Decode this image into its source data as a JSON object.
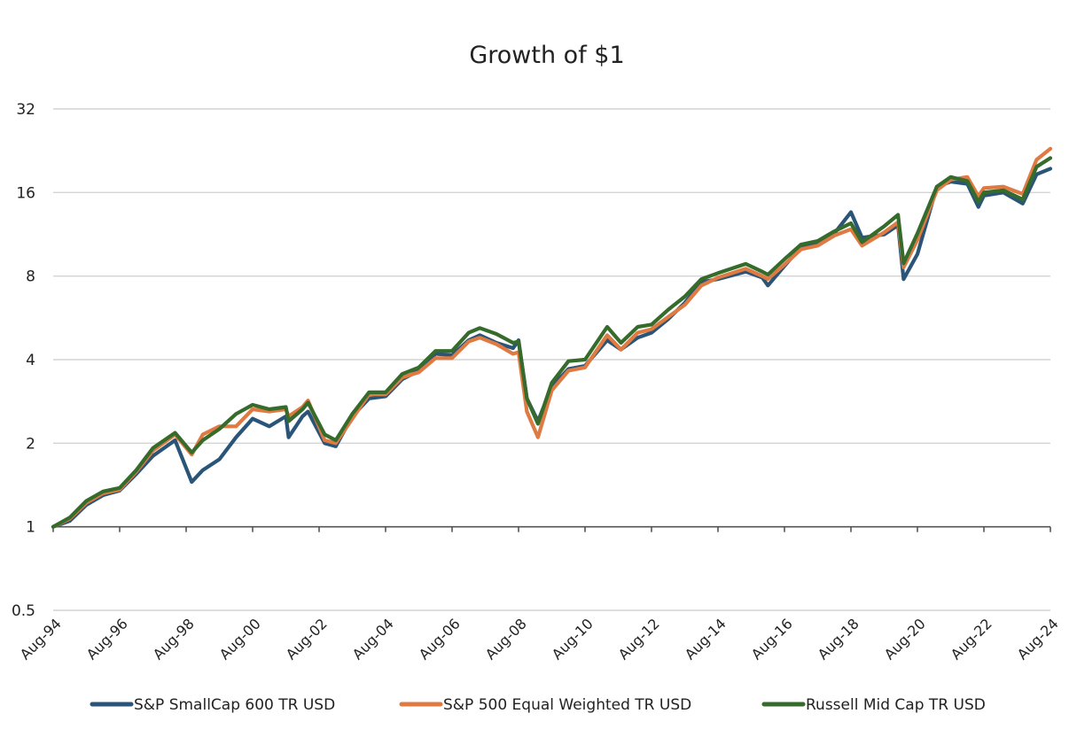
{
  "chart_data": {
    "type": "line",
    "title": "Growth of $1",
    "xlabel": "",
    "ylabel": "",
    "yscale": "log2",
    "ylim": [
      0.5,
      32
    ],
    "yticks": [
      {
        "value": 0.5,
        "label": "0.5"
      },
      {
        "value": 1,
        "label": "1"
      },
      {
        "value": 2,
        "label": "2"
      },
      {
        "value": 4,
        "label": "4"
      },
      {
        "value": 8,
        "label": "8"
      },
      {
        "value": 16,
        "label": "16"
      },
      {
        "value": 32,
        "label": "32"
      }
    ],
    "grid": true,
    "legend_position": "bottom",
    "xlim": [
      "1994-08",
      "2024-08"
    ],
    "xtick_labels": [
      "Aug-94",
      "Aug-96",
      "Aug-98",
      "Aug-00",
      "Aug-02",
      "Aug-04",
      "Aug-06",
      "Aug-08",
      "Aug-10",
      "Aug-12",
      "Aug-14",
      "Aug-16",
      "Aug-18",
      "Aug-20",
      "Aug-22",
      "Aug-24"
    ],
    "series": [
      {
        "name": "S&P SmallCap 600 TR USD",
        "color": "#2a5578",
        "points": [
          [
            "1994-08",
            1.0
          ],
          [
            "1995-02",
            1.05
          ],
          [
            "1995-08",
            1.2
          ],
          [
            "1996-02",
            1.3
          ],
          [
            "1996-08",
            1.35
          ],
          [
            "1997-02",
            1.55
          ],
          [
            "1997-08",
            1.8
          ],
          [
            "1998-04",
            2.05
          ],
          [
            "1998-10",
            1.45
          ],
          [
            "1999-02",
            1.6
          ],
          [
            "1999-08",
            1.75
          ],
          [
            "2000-02",
            2.1
          ],
          [
            "2000-08",
            2.45
          ],
          [
            "2001-02",
            2.3
          ],
          [
            "2001-08",
            2.5
          ],
          [
            "2001-09",
            2.1
          ],
          [
            "2002-02",
            2.5
          ],
          [
            "2002-04",
            2.6
          ],
          [
            "2002-10",
            2.0
          ],
          [
            "2003-02",
            1.95
          ],
          [
            "2003-08",
            2.5
          ],
          [
            "2004-02",
            2.9
          ],
          [
            "2004-08",
            2.95
          ],
          [
            "2005-02",
            3.4
          ],
          [
            "2005-08",
            3.65
          ],
          [
            "2006-02",
            4.2
          ],
          [
            "2006-08",
            4.15
          ],
          [
            "2007-02",
            4.7
          ],
          [
            "2007-06",
            4.9
          ],
          [
            "2007-12",
            4.6
          ],
          [
            "2008-06",
            4.4
          ],
          [
            "2008-08",
            4.7
          ],
          [
            "2008-11",
            2.9
          ],
          [
            "2009-03",
            2.4
          ],
          [
            "2009-08",
            3.2
          ],
          [
            "2010-02",
            3.7
          ],
          [
            "2010-08",
            3.8
          ],
          [
            "2011-04",
            4.7
          ],
          [
            "2011-09",
            4.35
          ],
          [
            "2012-03",
            4.8
          ],
          [
            "2012-08",
            5.0
          ],
          [
            "2013-02",
            5.6
          ],
          [
            "2013-08",
            6.4
          ],
          [
            "2014-02",
            7.6
          ],
          [
            "2014-08",
            7.8
          ],
          [
            "2015-06",
            8.3
          ],
          [
            "2015-12",
            7.9
          ],
          [
            "2016-02",
            7.4
          ],
          [
            "2016-08",
            8.7
          ],
          [
            "2017-02",
            10.2
          ],
          [
            "2017-08",
            10.4
          ],
          [
            "2018-02",
            11.4
          ],
          [
            "2018-08",
            13.6
          ],
          [
            "2018-12",
            11.0
          ],
          [
            "2019-08",
            11.3
          ],
          [
            "2020-01",
            12.2
          ],
          [
            "2020-03",
            7.8
          ],
          [
            "2020-08",
            9.6
          ],
          [
            "2021-03",
            16.8
          ],
          [
            "2021-08",
            17.5
          ],
          [
            "2022-02",
            17.2
          ],
          [
            "2022-06",
            14.2
          ],
          [
            "2022-08",
            15.6
          ],
          [
            "2023-03",
            16.0
          ],
          [
            "2023-10",
            14.6
          ],
          [
            "2024-03",
            18.6
          ],
          [
            "2024-08",
            19.5
          ]
        ]
      },
      {
        "name": "S&P 500 Equal Weighted TR USD",
        "color": "#de7a42",
        "points": [
          [
            "1994-08",
            1.0
          ],
          [
            "1995-02",
            1.07
          ],
          [
            "1995-08",
            1.22
          ],
          [
            "1996-02",
            1.32
          ],
          [
            "1996-08",
            1.36
          ],
          [
            "1997-02",
            1.58
          ],
          [
            "1997-08",
            1.88
          ],
          [
            "1998-04",
            2.15
          ],
          [
            "1998-10",
            1.82
          ],
          [
            "1999-02",
            2.15
          ],
          [
            "1999-08",
            2.3
          ],
          [
            "2000-02",
            2.3
          ],
          [
            "2000-08",
            2.65
          ],
          [
            "2001-02",
            2.6
          ],
          [
            "2001-08",
            2.65
          ],
          [
            "2001-09",
            2.5
          ],
          [
            "2002-02",
            2.7
          ],
          [
            "2002-04",
            2.85
          ],
          [
            "2002-10",
            2.05
          ],
          [
            "2003-02",
            2.0
          ],
          [
            "2003-08",
            2.45
          ],
          [
            "2004-02",
            3.0
          ],
          [
            "2004-08",
            3.0
          ],
          [
            "2005-02",
            3.45
          ],
          [
            "2005-08",
            3.6
          ],
          [
            "2006-02",
            4.05
          ],
          [
            "2006-08",
            4.05
          ],
          [
            "2007-02",
            4.65
          ],
          [
            "2007-06",
            4.8
          ],
          [
            "2007-12",
            4.55
          ],
          [
            "2008-06",
            4.2
          ],
          [
            "2008-08",
            4.25
          ],
          [
            "2008-11",
            2.6
          ],
          [
            "2009-03",
            2.1
          ],
          [
            "2009-08",
            3.1
          ],
          [
            "2010-02",
            3.65
          ],
          [
            "2010-08",
            3.75
          ],
          [
            "2011-04",
            4.9
          ],
          [
            "2011-09",
            4.35
          ],
          [
            "2012-03",
            5.0
          ],
          [
            "2012-08",
            5.15
          ],
          [
            "2013-02",
            5.7
          ],
          [
            "2013-08",
            6.3
          ],
          [
            "2014-02",
            7.4
          ],
          [
            "2014-08",
            7.9
          ],
          [
            "2015-06",
            8.5
          ],
          [
            "2015-12",
            8.0
          ],
          [
            "2016-02",
            7.8
          ],
          [
            "2016-08",
            8.8
          ],
          [
            "2017-02",
            10.0
          ],
          [
            "2017-08",
            10.3
          ],
          [
            "2018-02",
            11.2
          ],
          [
            "2018-08",
            11.8
          ],
          [
            "2018-12",
            10.3
          ],
          [
            "2019-08",
            11.5
          ],
          [
            "2020-01",
            12.5
          ],
          [
            "2020-03",
            8.6
          ],
          [
            "2020-08",
            10.8
          ],
          [
            "2021-03",
            16.3
          ],
          [
            "2021-08",
            17.8
          ],
          [
            "2022-02",
            18.2
          ],
          [
            "2022-06",
            15.5
          ],
          [
            "2022-08",
            16.6
          ],
          [
            "2023-03",
            16.8
          ],
          [
            "2023-10",
            15.8
          ],
          [
            "2024-03",
            21.0
          ],
          [
            "2024-08",
            23.0
          ]
        ]
      },
      {
        "name": "Russell Mid Cap TR USD",
        "color": "#356b2b",
        "points": [
          [
            "1994-08",
            1.0
          ],
          [
            "1995-02",
            1.08
          ],
          [
            "1995-08",
            1.24
          ],
          [
            "1996-02",
            1.34
          ],
          [
            "1996-08",
            1.38
          ],
          [
            "1997-02",
            1.6
          ],
          [
            "1997-08",
            1.92
          ],
          [
            "1998-04",
            2.18
          ],
          [
            "1998-10",
            1.85
          ],
          [
            "1999-02",
            2.05
          ],
          [
            "1999-08",
            2.25
          ],
          [
            "2000-02",
            2.55
          ],
          [
            "2000-08",
            2.75
          ],
          [
            "2001-02",
            2.65
          ],
          [
            "2001-08",
            2.7
          ],
          [
            "2001-09",
            2.4
          ],
          [
            "2002-02",
            2.65
          ],
          [
            "2002-04",
            2.8
          ],
          [
            "2002-10",
            2.15
          ],
          [
            "2003-02",
            2.05
          ],
          [
            "2003-08",
            2.55
          ],
          [
            "2004-02",
            3.05
          ],
          [
            "2004-08",
            3.05
          ],
          [
            "2005-02",
            3.55
          ],
          [
            "2005-08",
            3.75
          ],
          [
            "2006-02",
            4.3
          ],
          [
            "2006-08",
            4.3
          ],
          [
            "2007-02",
            5.0
          ],
          [
            "2007-06",
            5.2
          ],
          [
            "2007-12",
            4.95
          ],
          [
            "2008-06",
            4.6
          ],
          [
            "2008-08",
            4.65
          ],
          [
            "2008-11",
            2.9
          ],
          [
            "2009-03",
            2.35
          ],
          [
            "2009-08",
            3.3
          ],
          [
            "2010-02",
            3.95
          ],
          [
            "2010-08",
            4.0
          ],
          [
            "2011-04",
            5.25
          ],
          [
            "2011-09",
            4.6
          ],
          [
            "2012-03",
            5.25
          ],
          [
            "2012-08",
            5.35
          ],
          [
            "2013-02",
            6.05
          ],
          [
            "2013-08",
            6.75
          ],
          [
            "2014-02",
            7.8
          ],
          [
            "2014-08",
            8.2
          ],
          [
            "2015-06",
            8.85
          ],
          [
            "2015-12",
            8.3
          ],
          [
            "2016-02",
            8.1
          ],
          [
            "2016-08",
            9.2
          ],
          [
            "2017-02",
            10.4
          ],
          [
            "2017-08",
            10.7
          ],
          [
            "2018-02",
            11.6
          ],
          [
            "2018-08",
            12.4
          ],
          [
            "2018-12",
            10.6
          ],
          [
            "2019-08",
            12.1
          ],
          [
            "2020-01",
            13.3
          ],
          [
            "2020-03",
            8.9
          ],
          [
            "2020-08",
            11.4
          ],
          [
            "2021-03",
            16.8
          ],
          [
            "2021-08",
            18.2
          ],
          [
            "2022-02",
            17.6
          ],
          [
            "2022-06",
            14.8
          ],
          [
            "2022-08",
            16.0
          ],
          [
            "2023-03",
            16.3
          ],
          [
            "2023-10",
            15.1
          ],
          [
            "2024-03",
            19.8
          ],
          [
            "2024-08",
            21.3
          ]
        ]
      }
    ]
  }
}
